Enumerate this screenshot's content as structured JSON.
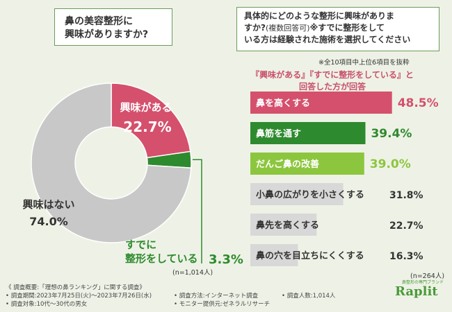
{
  "left_panel": {
    "question_line1": "鼻の美容整形に",
    "question_line2": "興味がありますか?",
    "n_note": "(n=1,014人)"
  },
  "right_panel": {
    "question_line1": "具体的にどのような整形に興味がありま",
    "question_line2_main": "すか?",
    "question_line2_small": "(複数回答可)",
    "question_line2_tail": "※すでに整形をして",
    "question_line3": "いる方は経験された施術を選択してください",
    "top_note": "※全10項目中上位6項目を抜粋",
    "subtitle_line1": "『興味がある』『すでに整形をしている』と",
    "subtitle_line2": "回答した方が回答",
    "n_note": "(n=264人)"
  },
  "footer": {
    "summary": "《 調査概要:「理想の鼻ランキング」に関する調査》",
    "period": "• 調査期間:2023年7月25日(火)〜2023年7月26日(水)",
    "target": "• 調査対象:10代〜30代の男女",
    "method": "• 調査方法:インターネット調査",
    "provider": "• モニター提供元:ゼネラルリサーチ",
    "count": "• 調査人数:1,014人"
  },
  "logo": {
    "brand": "Raplit",
    "tagline": "鼻整形の専門ブランド"
  },
  "chart_data": [
    {
      "type": "pie",
      "donut": true,
      "slices": [
        {
          "label": "興味がある",
          "value": 22.7,
          "display": "22.7%",
          "color": "#d4506c"
        },
        {
          "label_line1": "すでに",
          "label_line2": "整形をしている",
          "value": 3.3,
          "display": "3.3%",
          "color": "#2e8a2e"
        },
        {
          "label": "興味はない",
          "value": 74.0,
          "display": "74.0%",
          "color": "#c8c8c8"
        }
      ]
    },
    {
      "type": "bar",
      "orientation": "horizontal",
      "xlim": [
        0,
        50
      ],
      "categories": [
        "鼻を高くする",
        "鼻筋を通す",
        "だんご鼻の改善",
        "小鼻の広がりを小さくする",
        "鼻先を高くする",
        "鼻の穴を目立ちにくくする"
      ],
      "values": [
        48.5,
        39.4,
        39.0,
        31.8,
        22.7,
        16.3
      ],
      "labels": [
        "48.5%",
        "39.4%",
        "39.0%",
        "31.8%",
        "22.7%",
        "16.3%"
      ],
      "colors": [
        "#d4506c",
        "#2e8a2e",
        "#8cc63e",
        "#d8d8d8",
        "#d8d8d8",
        "#d8d8d8"
      ],
      "label_colors": [
        "#ffffff",
        "#ffffff",
        "#ffffff",
        "#333333",
        "#333333",
        "#333333"
      ],
      "value_colors": [
        "#d4506c",
        "#2e8a2e",
        "#8cc63e",
        "#333333",
        "#333333",
        "#333333"
      ]
    }
  ]
}
